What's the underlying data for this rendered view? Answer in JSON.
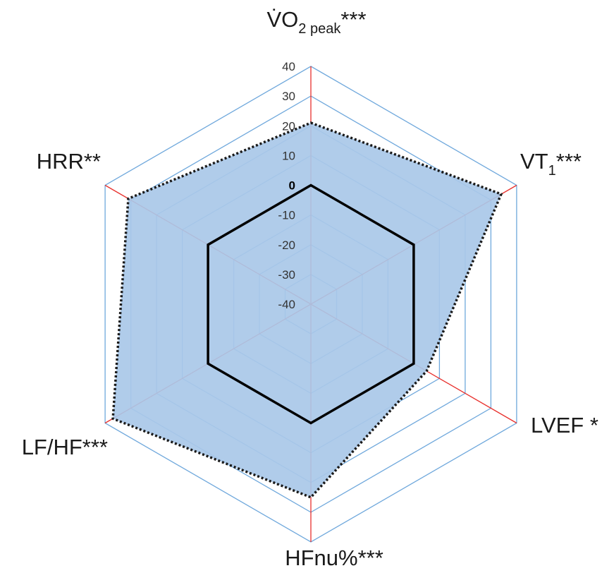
{
  "chart_data": {
    "type": "radar",
    "axes": [
      {
        "label": "V̇O",
        "sub": "2 peak",
        "stars": "***"
      },
      {
        "label": "VT",
        "sub": "1",
        "stars": "***"
      },
      {
        "label": "LVEF *",
        "sub": "",
        "stars": ""
      },
      {
        "label": "HFnu%***",
        "sub": "",
        "stars": ""
      },
      {
        "label": "LF/HF***",
        "sub": "",
        "stars": ""
      },
      {
        "label": "HRR**",
        "sub": "",
        "stars": ""
      }
    ],
    "rlim": [
      -40,
      40
    ],
    "ticks": [
      -40,
      -30,
      -20,
      -10,
      0,
      10,
      20,
      30,
      40
    ],
    "tick_labels": [
      "-40",
      "-30",
      "-20",
      "-10",
      "0",
      "10",
      "20",
      "30",
      "40"
    ],
    "series": [
      {
        "values": [
          21,
          34,
          5,
          25,
          37,
          31
        ],
        "style": "filled, dotted outline"
      },
      {
        "values": [
          0,
          0,
          0,
          0,
          0,
          0
        ],
        "style": "solid baseline"
      }
    ],
    "colors": {
      "fill": "#a9c8e8",
      "outline": "#1a1a1a",
      "grid": "#6fa8dc",
      "spokes": "#e8302c",
      "baseline": "#000000"
    }
  }
}
